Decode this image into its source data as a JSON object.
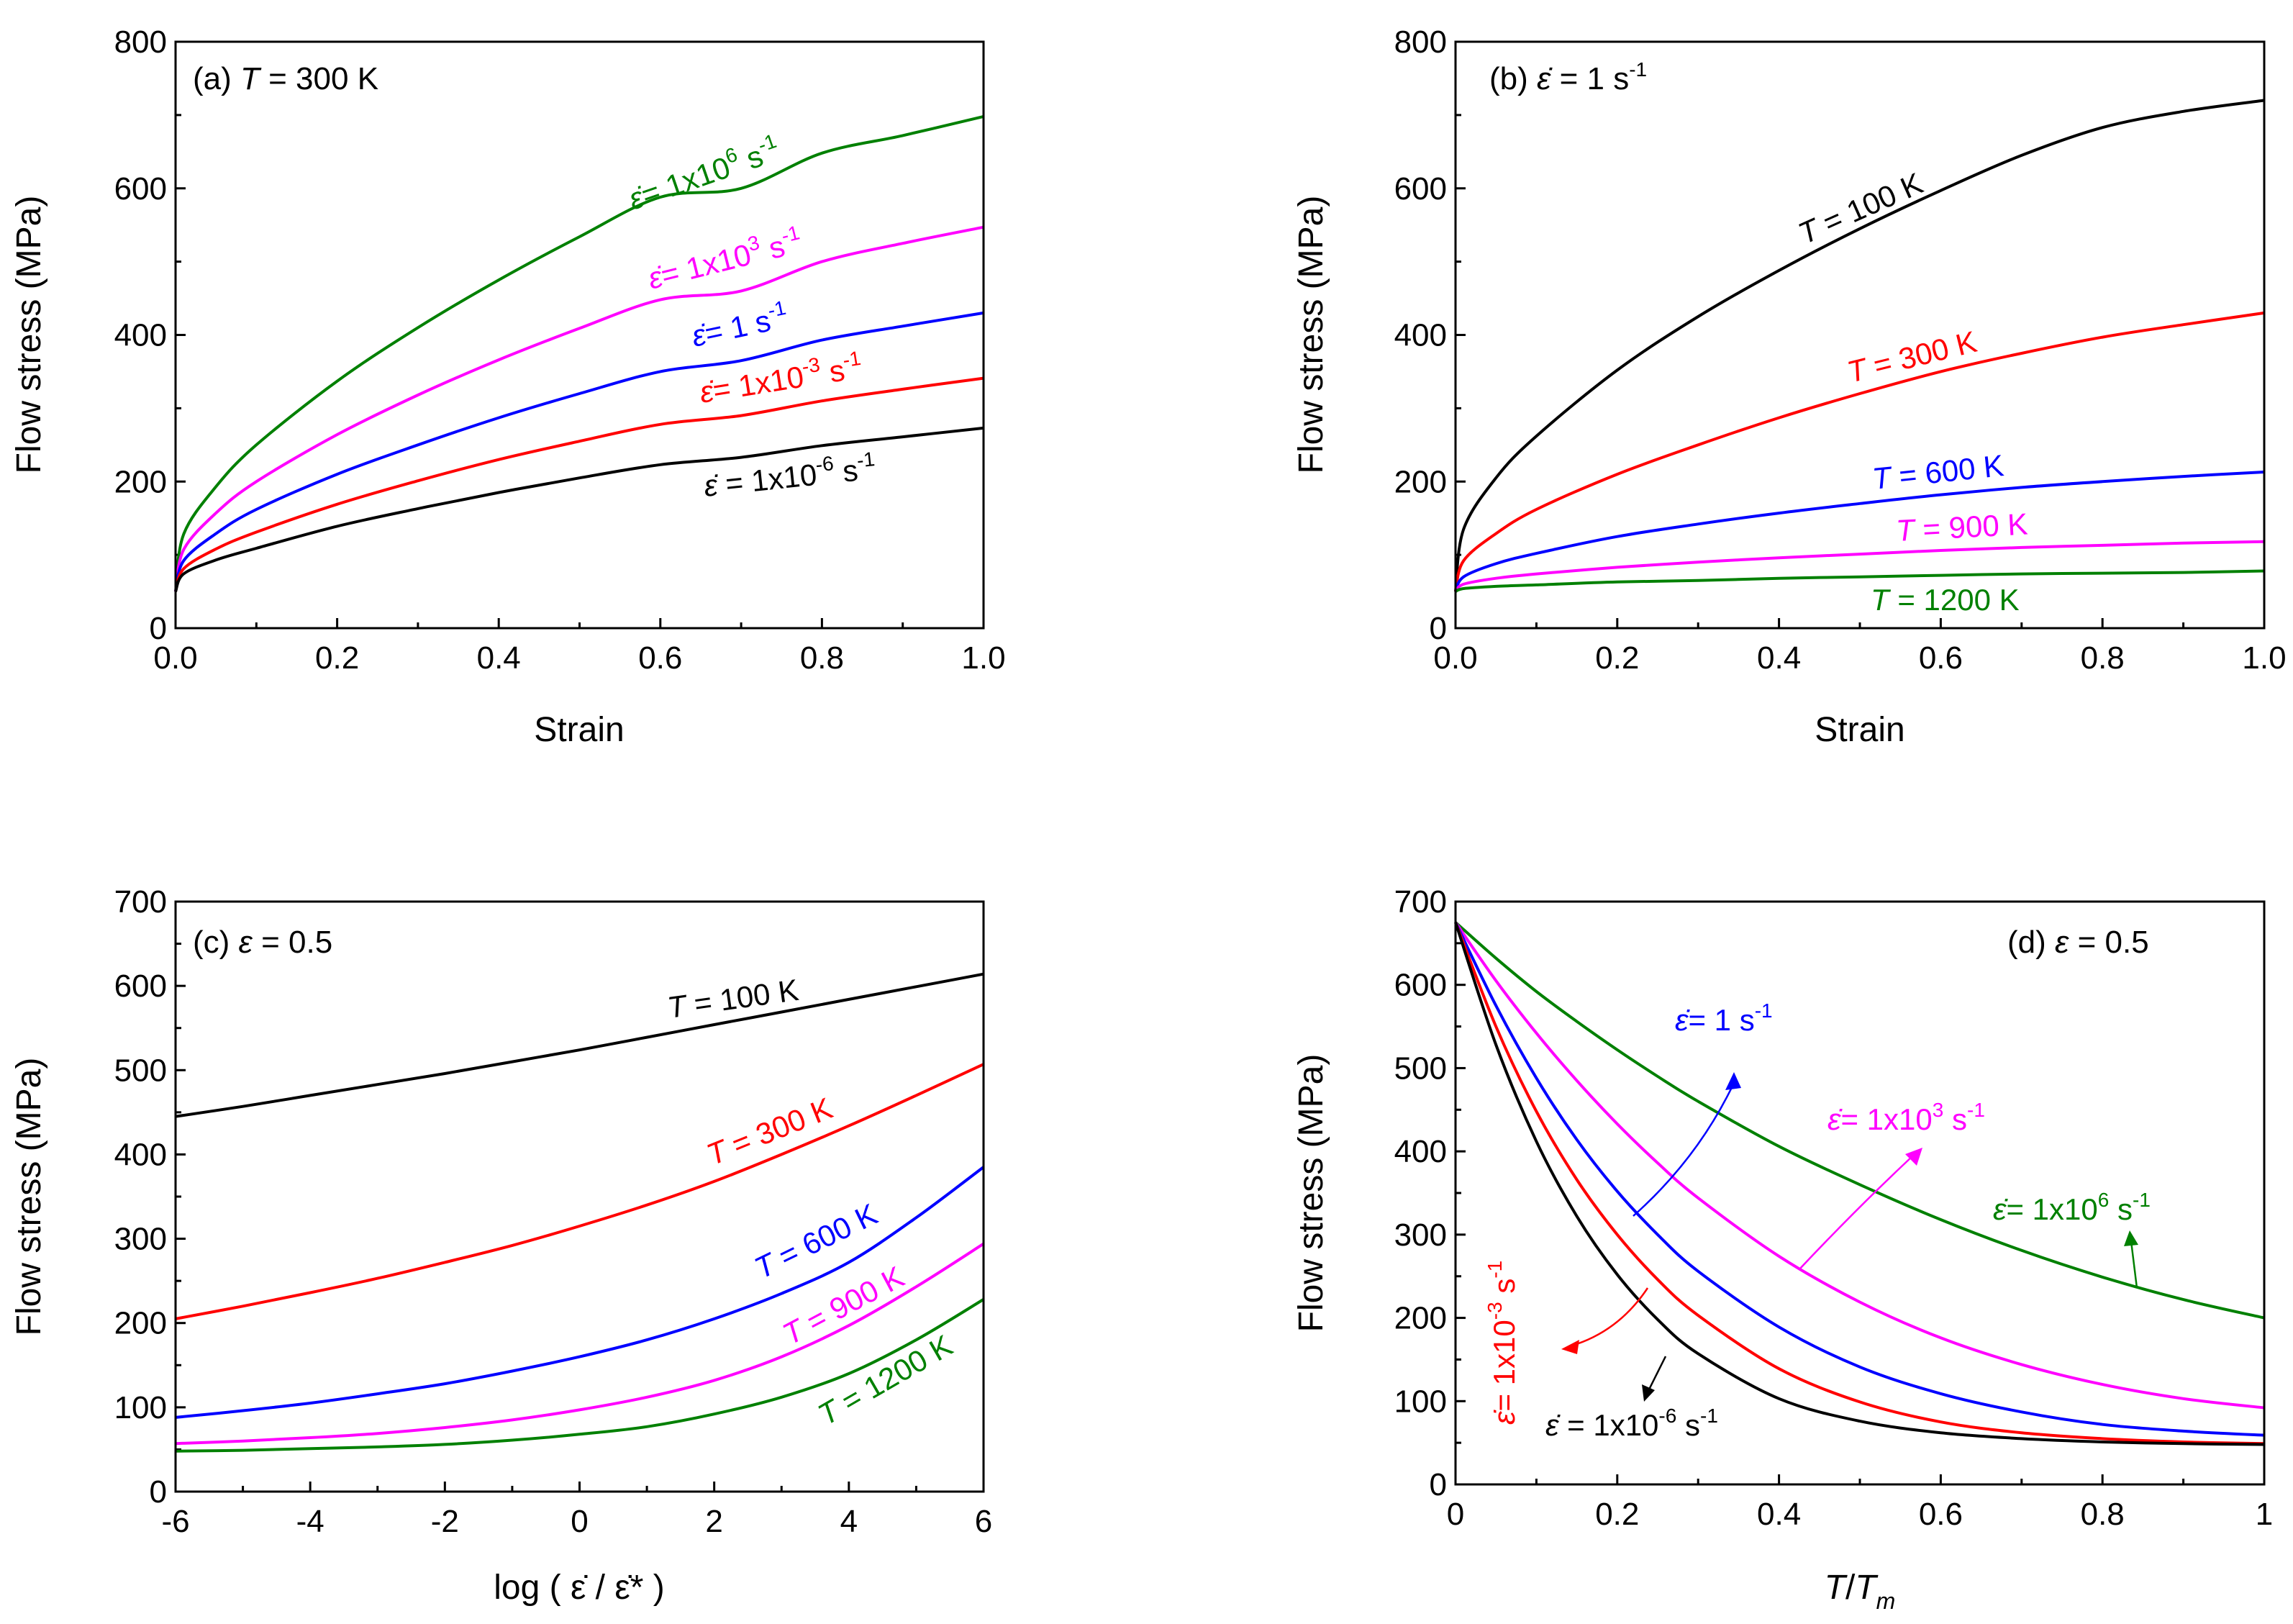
{
  "colors": {
    "black": "#000000",
    "red": "#ff0000",
    "blue": "#0000ff",
    "magenta": "#ff00ff",
    "green": "#008000"
  },
  "chart_data": [
    {
      "id": "a",
      "type": "line",
      "panel_label": "(a)",
      "condition_var": "T",
      "condition_value": " = 300 K",
      "xlabel": "Strain",
      "ylabel": "Flow stress (MPa)",
      "xlim": [
        0,
        1.0
      ],
      "ylim": [
        0,
        800
      ],
      "xticks": [
        "0.0",
        "0.2",
        "0.4",
        "0.6",
        "0.8",
        "1.0"
      ],
      "yticks": [
        "0",
        "200",
        "400",
        "600",
        "800"
      ],
      "x": [
        0,
        0.01,
        0.05,
        0.1,
        0.2,
        0.3,
        0.4,
        0.5,
        0.6,
        0.7,
        0.8,
        0.9,
        1.0
      ],
      "series": [
        {
          "label_sym": "ε̇",
          "label_rest": "= 1x10",
          "label_exp": "6",
          "label_unit": " s",
          "label_uexp": "-1",
          "color": "#008000",
          "y": [
            50,
            128,
            193,
            250,
            337,
            410,
            475,
            534,
            588,
            600,
            648,
            672,
            698
          ]
        },
        {
          "label_sym": "ε̇",
          "label_rest": "= 1x10",
          "label_exp": "3",
          "label_unit": " s",
          "label_uexp": "-1",
          "color": "#ff00ff",
          "y": [
            50,
            107,
            157,
            200,
            264,
            318,
            366,
            409,
            448,
            460,
            500,
            525,
            547
          ]
        },
        {
          "label_sym": "ε̇",
          "label_rest": "= 1",
          "label_exp": "",
          "label_unit": " s",
          "label_uexp": "-1",
          "color": "#0000ff",
          "y": [
            50,
            92,
            129,
            162,
            210,
            250,
            287,
            320,
            350,
            365,
            393,
            412,
            430
          ]
        },
        {
          "label_sym": "ε̇",
          "label_rest": "= 1x10",
          "label_exp": "-3",
          "label_unit": " s",
          "label_uexp": "-1",
          "color": "#ff0000",
          "y": [
            50,
            81,
            108,
            131,
            169,
            201,
            230,
            255,
            278,
            290,
            310,
            326,
            341
          ]
        },
        {
          "label_sym": "ε̇",
          "label_rest": " = 1x10",
          "label_exp": "-6",
          "label_unit": " s",
          "label_uexp": "-1",
          "color": "#000000",
          "y": [
            50,
            74,
            93,
            109,
            139,
            163,
            185,
            205,
            223,
            233,
            249,
            261,
            273
          ]
        }
      ]
    },
    {
      "id": "b",
      "type": "line",
      "panel_label": "(b)",
      "condition_var": "ε̇",
      "condition_value": " = 1 s",
      "condition_exp": "-1",
      "xlabel": "Strain",
      "ylabel": "Flow stress (MPa)",
      "xlim": [
        0,
        1.0
      ],
      "ylim": [
        0,
        800
      ],
      "xticks": [
        "0.0",
        "0.2",
        "0.4",
        "0.6",
        "0.8",
        "1.0"
      ],
      "yticks": [
        "0",
        "200",
        "400",
        "600",
        "800"
      ],
      "x": [
        0,
        0.01,
        0.05,
        0.1,
        0.2,
        0.3,
        0.4,
        0.5,
        0.6,
        0.7,
        0.8,
        0.9,
        1.0
      ],
      "series": [
        {
          "label_var": "T",
          "label_rest": " = 100 K",
          "color": "#000000",
          "y": [
            50,
            135,
            205,
            262,
            352,
            425,
            488,
            545,
            597,
            645,
            683,
            705,
            720
          ]
        },
        {
          "label_var": "T",
          "label_rest": " = 300 K",
          "color": "#ff0000",
          "y": [
            50,
            92,
            129,
            162,
            210,
            250,
            287,
            320,
            350,
            375,
            397,
            414,
            430
          ]
        },
        {
          "label_var": "T",
          "label_rest": " = 600 K",
          "color": "#0000ff",
          "y": [
            50,
            70,
            88,
            102,
            125,
            142,
            157,
            170,
            182,
            192,
            200,
            207,
            213
          ]
        },
        {
          "label_var": "T",
          "label_rest": " = 900 K",
          "color": "#ff00ff",
          "y": [
            50,
            60,
            68,
            74,
            83,
            90,
            96,
            101,
            106,
            110,
            113,
            116,
            118
          ]
        },
        {
          "label_var": "T",
          "label_rest": " = 1200 K",
          "color": "#008000",
          "y": [
            50,
            54,
            57,
            59,
            63,
            65,
            68,
            70,
            72,
            74,
            75,
            76,
            78
          ]
        }
      ]
    },
    {
      "id": "c",
      "type": "line",
      "panel_label": "(c)",
      "condition_var": "ε",
      "condition_value": " = 0.5",
      "xlabel": "log ( ε̇  /  ε̇* )",
      "ylabel": "Flow stress (MPa)",
      "xlim": [
        -6,
        6
      ],
      "ylim": [
        0,
        700
      ],
      "xticks": [
        "-6",
        "-4",
        "-2",
        "0",
        "2",
        "4",
        "6"
      ],
      "yticks": [
        "0",
        "100",
        "200",
        "300",
        "400",
        "500",
        "600",
        "700"
      ],
      "x": [
        -6,
        -5,
        -4,
        -3,
        -2,
        -1,
        0,
        1,
        2,
        3,
        4,
        5,
        6
      ],
      "series": [
        {
          "label_var": "T",
          "label_rest": " = 100 K",
          "color": "#000000",
          "y": [
            445,
            457,
            470,
            483,
            496,
            510,
            524,
            539,
            554,
            569,
            584,
            599,
            614
          ]
        },
        {
          "label_var": "T",
          "label_rest": " = 300 K",
          "color": "#ff0000",
          "y": [
            205,
            220,
            236,
            253,
            272,
            292,
            315,
            340,
            368,
            400,
            434,
            470,
            507
          ]
        },
        {
          "label_var": "T",
          "label_rest": " = 600 K",
          "color": "#0000ff",
          "y": [
            88,
            96,
            105,
            116,
            128,
            143,
            160,
            180,
            205,
            235,
            272,
            325,
            385
          ]
        },
        {
          "label_var": "T",
          "label_rest": " = 900 K",
          "color": "#ff00ff",
          "y": [
            57,
            60,
            64,
            69,
            76,
            85,
            97,
            112,
            132,
            160,
            197,
            243,
            294
          ]
        },
        {
          "label_var": "T",
          "label_rest": " = 1200 K",
          "color": "#008000",
          "y": [
            48,
            49,
            51,
            53,
            56,
            61,
            68,
            77,
            92,
            112,
            140,
            180,
            228
          ]
        }
      ]
    },
    {
      "id": "d",
      "type": "line",
      "panel_label": "(d)",
      "condition_var": "ε",
      "condition_value": " = 0.5",
      "xlabel_var": "T",
      "xlabel_sep": "/",
      "xlabel_var2": "T",
      "xlabel_sub": "m",
      "ylabel": "Flow stress (MPa)",
      "xlim": [
        0,
        1
      ],
      "ylim": [
        0,
        700
      ],
      "xticks": [
        "0",
        "0.2",
        "0.4",
        "0.6",
        "0.8",
        "1"
      ],
      "yticks": [
        "0",
        "100",
        "200",
        "300",
        "400",
        "500",
        "600",
        "700"
      ],
      "x": [
        0,
        0.05,
        0.1,
        0.15,
        0.2,
        0.25,
        0.3,
        0.4,
        0.5,
        0.6,
        0.7,
        0.8,
        0.9,
        1.0
      ],
      "series": [
        {
          "label_sym": "ε̇",
          "label_rest": "= 1x10",
          "label_exp": "6",
          "label_unit": " s",
          "label_uexp": "-1",
          "color": "#008000",
          "y": [
            675,
            632,
            592,
            556,
            522,
            490,
            460,
            406,
            360,
            318,
            281,
            249,
            222,
            200
          ]
        },
        {
          "label_sym": "ε̇",
          "label_rest": "= 1x10",
          "label_exp": "3",
          "label_unit": " s",
          "label_uexp": "-1",
          "color": "#ff00ff",
          "y": [
            675,
            605,
            542,
            485,
            433,
            386,
            344,
            274,
            219,
            176,
            144,
            120,
            103,
            92
          ]
        },
        {
          "label_sym": "ε̇",
          "label_rest": "= 1",
          "label_exp": "",
          "label_unit": " s",
          "label_uexp": "-1",
          "color": "#0000ff",
          "y": [
            675,
            575,
            488,
            414,
            352,
            300,
            256,
            189,
            141,
            109,
            87,
            72,
            64,
            59
          ]
        },
        {
          "label_sym": "ε̇",
          "label_rest": "= 1x10",
          "label_exp": "-3",
          "label_unit": " s",
          "label_uexp": "-1",
          "color": "#ff0000",
          "y": [
            675,
            550,
            448,
            366,
            300,
            246,
            203,
            139,
            99,
            75,
            62,
            55,
            51,
            49
          ]
        },
        {
          "label_sym": "ε̇",
          "label_rest": " = 1x10",
          "label_exp": "-6",
          "label_unit": " s",
          "label_uexp": "-1",
          "color": "#000000",
          "y": [
            675,
            528,
            412,
            322,
            252,
            198,
            157,
            103,
            76,
            62,
            55,
            51,
            49,
            48
          ]
        }
      ]
    }
  ]
}
